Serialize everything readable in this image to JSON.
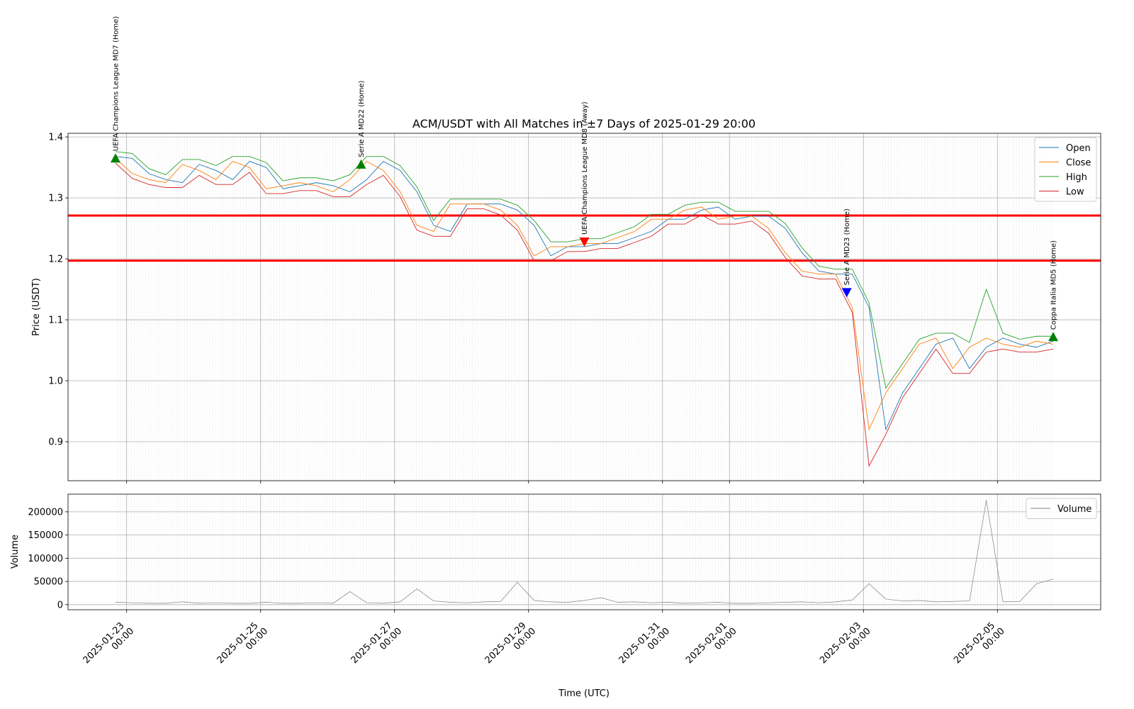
{
  "chart_data": [
    {
      "type": "line",
      "title": "ACM/USDT with All Matches in ±7 Days of 2025-01-29 20:00",
      "ylabel": "Price (USDT)",
      "x": [
        "2025-01-22 20:00",
        "2025-01-23 02:00",
        "2025-01-23 08:00",
        "2025-01-23 14:00",
        "2025-01-23 20:00",
        "2025-01-24 02:00",
        "2025-01-24 08:00",
        "2025-01-24 14:00",
        "2025-01-24 20:00",
        "2025-01-25 02:00",
        "2025-01-25 08:00",
        "2025-01-25 14:00",
        "2025-01-25 20:00",
        "2025-01-26 02:00",
        "2025-01-26 08:00",
        "2025-01-26 14:00",
        "2025-01-26 20:00",
        "2025-01-27 02:00",
        "2025-01-27 08:00",
        "2025-01-27 14:00",
        "2025-01-27 20:00",
        "2025-01-28 02:00",
        "2025-01-28 08:00",
        "2025-01-28 14:00",
        "2025-01-28 20:00",
        "2025-01-29 02:00",
        "2025-01-29 08:00",
        "2025-01-29 14:00",
        "2025-01-29 20:00",
        "2025-01-30 02:00",
        "2025-01-30 08:00",
        "2025-01-30 14:00",
        "2025-01-30 20:00",
        "2025-01-31 02:00",
        "2025-01-31 08:00",
        "2025-01-31 14:00",
        "2025-01-31 20:00",
        "2025-02-01 02:00",
        "2025-02-01 08:00",
        "2025-02-01 14:00",
        "2025-02-01 20:00",
        "2025-02-02 02:00",
        "2025-02-02 08:00",
        "2025-02-02 14:00",
        "2025-02-02 20:00",
        "2025-02-03 02:00",
        "2025-02-03 08:00",
        "2025-02-03 14:00",
        "2025-02-03 20:00",
        "2025-02-04 02:00",
        "2025-02-04 08:00",
        "2025-02-04 14:00",
        "2025-02-04 20:00",
        "2025-02-05 02:00",
        "2025-02-05 08:00",
        "2025-02-05 14:00",
        "2025-02-05 20:00"
      ],
      "series": [
        {
          "name": "Open",
          "color": "#1f77b4",
          "values": [
            1.368,
            1.365,
            1.34,
            1.33,
            1.325,
            1.355,
            1.345,
            1.33,
            1.36,
            1.35,
            1.315,
            1.32,
            1.325,
            1.32,
            1.31,
            1.33,
            1.36,
            1.345,
            1.31,
            1.255,
            1.245,
            1.29,
            1.29,
            1.29,
            1.28,
            1.255,
            1.205,
            1.22,
            1.22,
            1.225,
            1.225,
            1.235,
            1.245,
            1.265,
            1.265,
            1.28,
            1.285,
            1.265,
            1.27,
            1.27,
            1.25,
            1.21,
            1.18,
            1.175,
            1.175,
            1.12,
            0.92,
            0.98,
            1.02,
            1.06,
            1.07,
            1.02,
            1.055,
            1.07,
            1.06,
            1.055,
            1.065
          ]
        },
        {
          "name": "Close",
          "color": "#ff7f0e",
          "values": [
            1.365,
            1.34,
            1.33,
            1.325,
            1.355,
            1.345,
            1.33,
            1.36,
            1.35,
            1.315,
            1.32,
            1.325,
            1.32,
            1.31,
            1.33,
            1.36,
            1.345,
            1.31,
            1.255,
            1.245,
            1.29,
            1.29,
            1.29,
            1.28,
            1.255,
            1.205,
            1.22,
            1.22,
            1.225,
            1.225,
            1.235,
            1.245,
            1.265,
            1.265,
            1.28,
            1.285,
            1.265,
            1.27,
            1.27,
            1.25,
            1.21,
            1.18,
            1.175,
            1.175,
            1.12,
            0.92,
            0.98,
            1.02,
            1.06,
            1.07,
            1.02,
            1.055,
            1.07,
            1.06,
            1.055,
            1.065,
            1.06
          ]
        },
        {
          "name": "High",
          "color": "#2ca02c",
          "values": [
            1.376,
            1.373,
            1.348,
            1.338,
            1.363,
            1.363,
            1.353,
            1.368,
            1.368,
            1.358,
            1.328,
            1.333,
            1.333,
            1.328,
            1.338,
            1.368,
            1.368,
            1.353,
            1.318,
            1.263,
            1.298,
            1.298,
            1.298,
            1.298,
            1.288,
            1.263,
            1.228,
            1.228,
            1.233,
            1.233,
            1.243,
            1.253,
            1.273,
            1.273,
            1.288,
            1.293,
            1.293,
            1.278,
            1.278,
            1.278,
            1.258,
            1.218,
            1.188,
            1.183,
            1.183,
            1.128,
            0.988,
            1.028,
            1.068,
            1.078,
            1.078,
            1.063,
            1.15,
            1.078,
            1.068,
            1.073,
            1.073
          ]
        },
        {
          "name": "Low",
          "color": "#d62728",
          "values": [
            1.357,
            1.332,
            1.322,
            1.317,
            1.317,
            1.337,
            1.322,
            1.322,
            1.342,
            1.307,
            1.307,
            1.312,
            1.312,
            1.302,
            1.302,
            1.322,
            1.337,
            1.302,
            1.247,
            1.237,
            1.237,
            1.282,
            1.282,
            1.272,
            1.247,
            1.197,
            1.197,
            1.212,
            1.212,
            1.217,
            1.217,
            1.227,
            1.237,
            1.257,
            1.257,
            1.272,
            1.257,
            1.257,
            1.262,
            1.242,
            1.202,
            1.172,
            1.167,
            1.167,
            1.112,
            0.86,
            0.912,
            0.972,
            1.012,
            1.052,
            1.012,
            1.012,
            1.047,
            1.052,
            1.047,
            1.047,
            1.052
          ]
        }
      ],
      "hlines": [
        1.271,
        1.197
      ],
      "hline_color": "#ff0000",
      "annotations": [
        {
          "x": "2025-01-22 20:00",
          "y": 1.365,
          "text": "UEFA Champions League MD7 (Home)",
          "marker": "up",
          "color": "#008000"
        },
        {
          "x": "2025-01-26 12:00",
          "y": 1.355,
          "text": "Serie A MD22 (Home)",
          "marker": "up",
          "color": "#008000"
        },
        {
          "x": "2025-01-29 20:00",
          "y": 1.228,
          "text": "UEFA Champions League MD8 (Away)",
          "marker": "down",
          "color": "#ff0000"
        },
        {
          "x": "2025-02-02 18:00",
          "y": 1.145,
          "text": "Serie A MD23 (Home)",
          "marker": "down",
          "color": "#0000ff"
        },
        {
          "x": "2025-02-05 20:00",
          "y": 1.072,
          "text": "Coppa Italia MD5 (Home)",
          "marker": "up",
          "color": "#008000"
        }
      ],
      "xlim": [
        "2025-01-22 03:00",
        "2025-02-06 13:00"
      ],
      "xticks": [
        "2025-01-23 00:00",
        "2025-01-25 00:00",
        "2025-01-27 00:00",
        "2025-01-29 00:00",
        "2025-01-31 00:00",
        "2025-02-01 00:00",
        "2025-02-03 00:00",
        "2025-02-05 00:00"
      ],
      "ylim": [
        0.836,
        1.406
      ],
      "yticks": [
        0.9,
        {
          "value": 1,
          "label": "1.0"
        },
        1.1,
        1.2,
        1.3,
        1.4
      ],
      "grid": true,
      "legend": "upper right"
    },
    {
      "type": "line",
      "ylabel": "Volume",
      "xlabel": "Time (UTC)",
      "series": [
        {
          "name": "Volume",
          "color": "#808080",
          "values": [
            5000,
            4000,
            3000,
            3000,
            6000,
            3000,
            4000,
            3000,
            3000,
            5000,
            3000,
            3000,
            4000,
            3000,
            28000,
            4000,
            3000,
            6000,
            34000,
            8000,
            5000,
            4000,
            6000,
            7000,
            48000,
            9000,
            6000,
            5000,
            9000,
            15000,
            5000,
            6000,
            4000,
            5000,
            3000,
            4000,
            5000,
            3000,
            3000,
            4000,
            5000,
            6000,
            4000,
            6000,
            10000,
            45000,
            12000,
            8000,
            9000,
            6000,
            7000,
            8000,
            225000,
            6000,
            7000,
            45000,
            55000
          ]
        }
      ],
      "ylim": [
        -11000,
        238000
      ],
      "yticks": [
        0,
        50000,
        100000,
        150000,
        200000
      ],
      "grid": true,
      "legend": "upper right"
    }
  ]
}
